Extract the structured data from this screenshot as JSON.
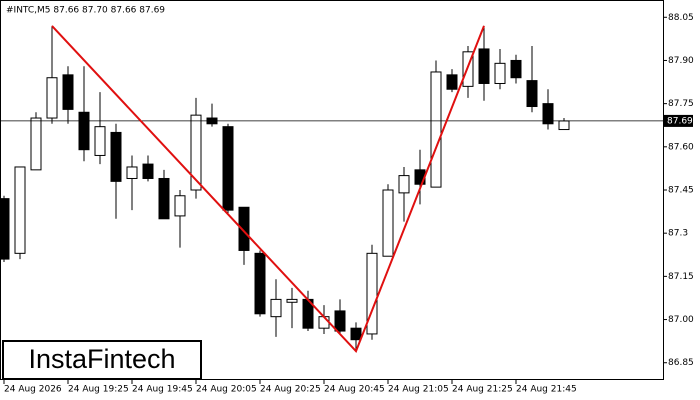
{
  "chart_data": {
    "type": "candlestick",
    "title": "#INTC,M5  87.66 87.70 87.66 87.69",
    "watermark": "InstaFintech",
    "categories": [
      "24 Aug 2026",
      null,
      null,
      null,
      "24 Aug 19:25",
      null,
      null,
      null,
      "24 Aug 19:45",
      null,
      null,
      null,
      "24 Aug 20:05",
      null,
      null,
      null,
      "24 Aug 20:25",
      null,
      null,
      null,
      "24 Aug 20:45",
      null,
      null,
      null,
      "24 Aug 21:05",
      null,
      null,
      null,
      "24 Aug 21:25",
      null,
      null,
      null,
      "24 Aug 21:45",
      null,
      null,
      null
    ],
    "open": [
      87.42,
      87.23,
      87.52,
      87.7,
      87.85,
      87.72,
      87.57,
      87.65,
      87.49,
      87.54,
      87.49,
      87.36,
      87.45,
      87.7,
      87.67,
      87.39,
      87.23,
      87.01,
      87.06,
      87.07,
      86.97,
      87.03,
      86.97,
      86.95,
      87.22,
      87.44,
      87.52,
      87.46,
      87.85,
      87.81,
      87.94,
      87.82,
      87.9,
      87.83,
      87.75,
      87.66
    ],
    "high": [
      87.43,
      87.53,
      87.72,
      88.02,
      87.88,
      87.88,
      87.79,
      87.68,
      87.57,
      87.57,
      87.52,
      87.45,
      87.77,
      87.75,
      87.68,
      87.39,
      87.24,
      87.14,
      87.11,
      87.1,
      87.05,
      87.07,
      86.99,
      87.26,
      87.47,
      87.53,
      87.59,
      87.9,
      87.87,
      87.95,
      88.02,
      87.94,
      87.92,
      87.95,
      87.8,
      87.7
    ],
    "low": [
      87.2,
      87.21,
      87.52,
      87.68,
      87.68,
      87.55,
      87.54,
      87.35,
      87.38,
      87.48,
      87.35,
      87.25,
      87.42,
      87.67,
      87.37,
      87.19,
      87.01,
      86.94,
      86.97,
      86.96,
      86.95,
      86.95,
      86.89,
      86.93,
      87.22,
      87.34,
      87.4,
      87.46,
      87.79,
      87.77,
      87.76,
      87.8,
      87.82,
      87.72,
      87.66,
      87.66
    ],
    "close": [
      87.21,
      87.53,
      87.7,
      87.84,
      87.73,
      87.59,
      87.67,
      87.48,
      87.53,
      87.49,
      87.35,
      87.43,
      87.71,
      87.68,
      87.38,
      87.24,
      87.02,
      87.07,
      87.07,
      86.97,
      87.01,
      86.96,
      86.93,
      87.23,
      87.45,
      87.5,
      87.47,
      87.86,
      87.8,
      87.93,
      87.82,
      87.89,
      87.84,
      87.74,
      87.68,
      87.69
    ],
    "up_color": "#ffffff",
    "down_color": "#000000",
    "current_price": {
      "value": 87.69,
      "label": "87.69"
    },
    "pattern": {
      "color": "#e01010",
      "x": [
        3,
        22,
        30
      ],
      "values": [
        88.02,
        86.89,
        88.02
      ]
    },
    "ylim": [
      86.79,
      88.11
    ],
    "yticks": [
      86.85,
      {
        "value": 87.0,
        "label": "87.00"
      },
      87.15,
      87.3,
      87.45,
      {
        "value": 87.6,
        "label": "87.60"
      },
      87.75,
      {
        "value": 87.9,
        "label": "87.90"
      },
      88.05
    ]
  }
}
